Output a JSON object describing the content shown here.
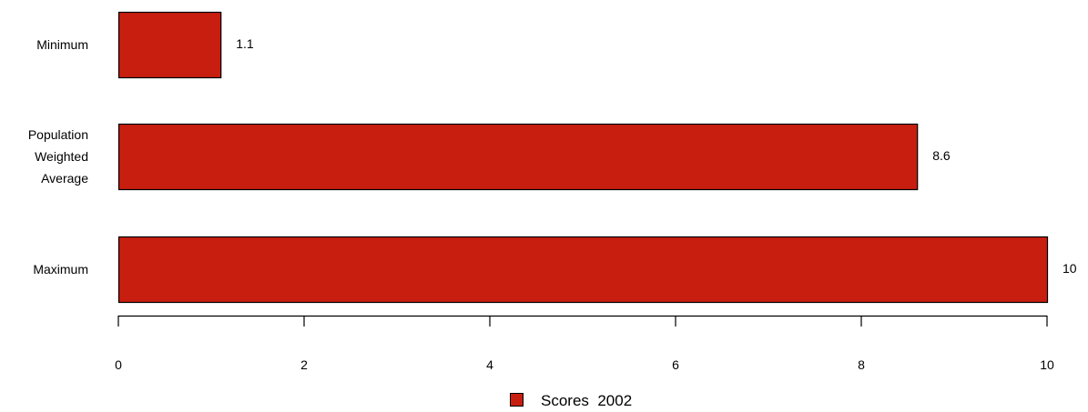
{
  "chart_data": {
    "type": "bar",
    "orientation": "horizontal",
    "categories": [
      [
        "Minimum"
      ],
      [
        "Population",
        "Weighted",
        "Average"
      ],
      [
        "Maximum"
      ]
    ],
    "series": [
      {
        "name": "Scores  2002",
        "values": [
          1.1,
          8.6,
          10
        ],
        "color": "#c81e0f"
      }
    ],
    "data_labels": [
      "1.1",
      "8.6",
      "10"
    ],
    "xlim": [
      0,
      10
    ],
    "x_ticks": [
      0,
      2,
      4,
      6,
      8,
      10
    ],
    "grid": false,
    "legend_position": "bottom-center",
    "title": "",
    "xlabel": "",
    "ylabel": ""
  }
}
